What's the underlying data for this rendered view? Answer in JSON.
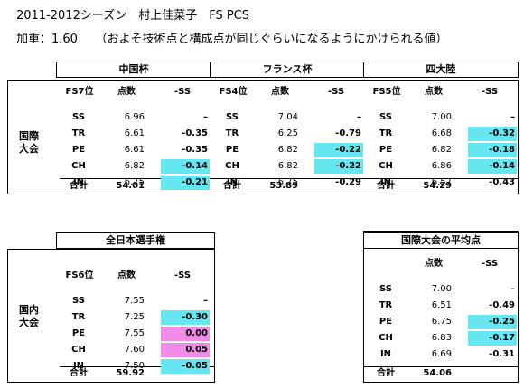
{
  "title": "2011-2012シーズン　村上佳菜子　FS PCS",
  "coef": "加重：1.60　　（およそ技術点と構成点が同じぐらいになるようにかけられる値）",
  "intl_label": [
    "国際",
    "大会"
  ],
  "nat_label": [
    "国内",
    "大会"
  ],
  "colors": {
    "cyan": "#66e6f0",
    "pink": "#f08ce8"
  },
  "intl": [
    {
      "name": "中国杯",
      "place": "FS7位",
      "points_h": "点数",
      "diff_h": "-SS",
      "rows": [
        {
          "k": "SS",
          "v": "6.96",
          "d": "–",
          "hl": ""
        },
        {
          "k": "TR",
          "v": "6.61",
          "d": "-0.35",
          "hl": ""
        },
        {
          "k": "PE",
          "v": "6.61",
          "d": "-0.35",
          "hl": ""
        },
        {
          "k": "CH",
          "v": "6.82",
          "d": "-0.14",
          "hl": "cyan"
        },
        {
          "k": "IN",
          "v": "6.75",
          "d": "-0.21",
          "hl": "cyan"
        }
      ],
      "total_label": "合計",
      "total": "54.01"
    },
    {
      "name": "フランス杯",
      "place": "FS4位",
      "points_h": "点数",
      "diff_h": "-SS",
      "rows": [
        {
          "k": "SS",
          "v": "7.04",
          "d": "–",
          "hl": ""
        },
        {
          "k": "TR",
          "v": "6.25",
          "d": "-0.79",
          "hl": ""
        },
        {
          "k": "PE",
          "v": "6.82",
          "d": "-0.22",
          "hl": "cyan"
        },
        {
          "k": "CH",
          "v": "6.82",
          "d": "-0.22",
          "hl": "cyan"
        },
        {
          "k": "IN",
          "v": "6.75",
          "d": "-0.29",
          "hl": ""
        }
      ],
      "total_label": "合計",
      "total": "53.89"
    },
    {
      "name": "四大陸",
      "place": "FS5位",
      "points_h": "点数",
      "diff_h": "-SS",
      "rows": [
        {
          "k": "SS",
          "v": "7.00",
          "d": "–",
          "hl": ""
        },
        {
          "k": "TR",
          "v": "6.68",
          "d": "-0.32",
          "hl": "cyan"
        },
        {
          "k": "PE",
          "v": "6.82",
          "d": "-0.18",
          "hl": "cyan"
        },
        {
          "k": "CH",
          "v": "6.86",
          "d": "-0.14",
          "hl": "cyan"
        },
        {
          "k": "IN",
          "v": "6.57",
          "d": "-0.43",
          "hl": ""
        }
      ],
      "total_label": "合計",
      "total": "54.29"
    }
  ],
  "national": {
    "name": "全日本選手権",
    "place": "FS6位",
    "points_h": "点数",
    "diff_h": "-SS",
    "rows": [
      {
        "k": "SS",
        "v": "7.55",
        "d": "–",
        "hl": ""
      },
      {
        "k": "TR",
        "v": "7.25",
        "d": "-0.30",
        "hl": "cyan"
      },
      {
        "k": "PE",
        "v": "7.55",
        "d": "0.00",
        "hl": "pink"
      },
      {
        "k": "CH",
        "v": "7.60",
        "d": "0.05",
        "hl": "pink"
      },
      {
        "k": "IN",
        "v": "7.50",
        "d": "-0.05",
        "hl": "cyan"
      }
    ],
    "total_label": "合計",
    "total": "59.92"
  },
  "average": {
    "name": "国際大会の平均点",
    "points_h": "点数",
    "diff_h": "-SS",
    "rows": [
      {
        "k": "SS",
        "v": "7.00",
        "d": "–",
        "hl": ""
      },
      {
        "k": "TR",
        "v": "6.51",
        "d": "-0.49",
        "hl": ""
      },
      {
        "k": "PE",
        "v": "6.75",
        "d": "-0.25",
        "hl": "cyan"
      },
      {
        "k": "CH",
        "v": "6.83",
        "d": "-0.17",
        "hl": "cyan"
      },
      {
        "k": "IN",
        "v": "6.69",
        "d": "-0.31",
        "hl": ""
      }
    ],
    "total_label": "合計",
    "total": "54.06"
  }
}
